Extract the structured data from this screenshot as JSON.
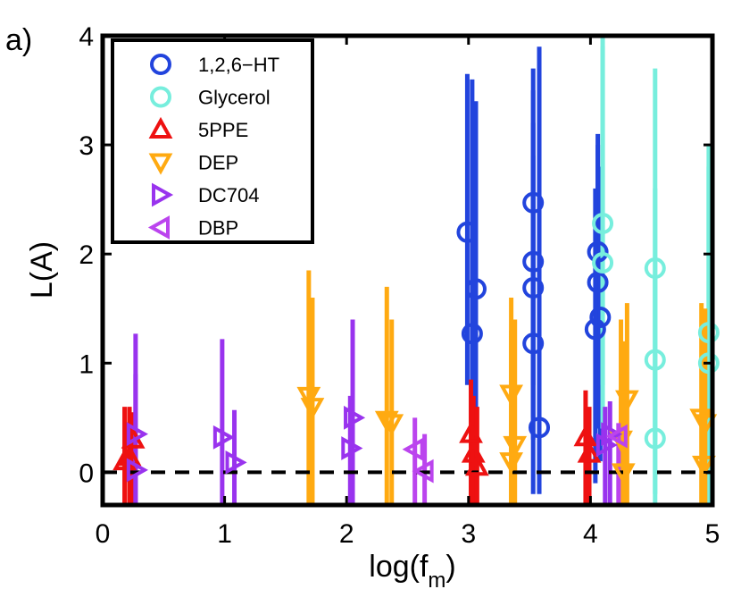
{
  "chart_data": {
    "type": "scatter",
    "panel_label": "a)",
    "title": "",
    "xlabel": "log(f",
    "xlabel_sub": "m",
    "xlabel_close": ")",
    "ylabel": "L(A)",
    "xlim": [
      0,
      5
    ],
    "ylim": [
      -0.3,
      4.0
    ],
    "xticks": [
      0,
      1,
      2,
      3,
      4,
      5
    ],
    "yticks": [
      0,
      1,
      2,
      3,
      4
    ],
    "xtick_labels": [
      "0",
      "1",
      "2",
      "3",
      "4",
      "5"
    ],
    "ytick_labels": [
      "0",
      "1",
      "2",
      "3",
      "4"
    ],
    "reference_line": {
      "y": 0,
      "style": "dashed",
      "color": "#000000"
    },
    "legend_position": "top-left",
    "series": [
      {
        "name": "1,2,6−HT",
        "marker": "circle",
        "color": "#2244dd",
        "points": [
          {
            "x": 2.99,
            "y": 2.2,
            "lo": 0.8,
            "hi": 3.65
          },
          {
            "x": 3.03,
            "y": 1.27,
            "lo": -0.1,
            "hi": 3.6
          },
          {
            "x": 3.06,
            "y": 1.68,
            "lo": 0.2,
            "hi": 3.4
          },
          {
            "x": 3.53,
            "y": 2.47,
            "lo": 0.8,
            "hi": 3.7
          },
          {
            "x": 3.53,
            "y": 1.93,
            "lo": 0.5,
            "hi": 3.5
          },
          {
            "x": 3.53,
            "y": 1.69,
            "lo": 0.3,
            "hi": 3.2
          },
          {
            "x": 3.53,
            "y": 1.18,
            "lo": -0.2,
            "hi": 2.9
          },
          {
            "x": 3.58,
            "y": 0.41,
            "lo": -0.2,
            "hi": 3.9
          },
          {
            "x": 4.06,
            "y": 2.02,
            "lo": 0.7,
            "hi": 3.1
          },
          {
            "x": 4.06,
            "y": 1.74,
            "lo": 0.4,
            "hi": 3.0
          },
          {
            "x": 4.08,
            "y": 1.42,
            "lo": 0.1,
            "hi": 2.8
          },
          {
            "x": 4.04,
            "y": 1.31,
            "lo": -0.1,
            "hi": 2.6
          }
        ]
      },
      {
        "name": "Glycerol",
        "marker": "circle",
        "color": "#77eedd",
        "points": [
          {
            "x": 4.1,
            "y": 2.28,
            "lo": 0.8,
            "hi": 4.0
          },
          {
            "x": 4.1,
            "y": 1.92,
            "lo": 0.4,
            "hi": 3.9
          },
          {
            "x": 4.53,
            "y": 1.87,
            "lo": 0.3,
            "hi": 3.7
          },
          {
            "x": 4.53,
            "y": 1.03,
            "lo": -0.2,
            "hi": 2.6
          },
          {
            "x": 4.53,
            "y": 0.31,
            "lo": -0.3,
            "hi": 1.8
          },
          {
            "x": 4.97,
            "y": 1.28,
            "lo": -0.2,
            "hi": 3.0
          },
          {
            "x": 4.97,
            "y": 1.0,
            "lo": -0.3,
            "hi": 2.8
          }
        ]
      },
      {
        "name": "5PPE",
        "marker": "triangle-up",
        "color": "#ee1111",
        "points": [
          {
            "x": 0.18,
            "y": 0.1,
            "lo": -0.3,
            "hi": 0.6
          },
          {
            "x": 0.22,
            "y": 0.14,
            "lo": -0.3,
            "hi": 0.6
          },
          {
            "x": 0.25,
            "y": 0.3,
            "lo": -0.3,
            "hi": 0.55
          },
          {
            "x": 3.02,
            "y": 0.35,
            "lo": -0.3,
            "hi": 0.85
          },
          {
            "x": 3.04,
            "y": 0.17,
            "lo": -0.3,
            "hi": 0.7
          },
          {
            "x": 3.07,
            "y": 0.05,
            "lo": -0.3,
            "hi": 0.6
          },
          {
            "x": 3.96,
            "y": 0.32,
            "lo": -0.3,
            "hi": 0.75
          },
          {
            "x": 3.99,
            "y": 0.17,
            "lo": -0.3,
            "hi": 0.6
          }
        ]
      },
      {
        "name": "DEP",
        "marker": "triangle-down",
        "color": "#ffaa11",
        "points": [
          {
            "x": 1.69,
            "y": 0.7,
            "lo": -0.3,
            "hi": 1.85
          },
          {
            "x": 1.72,
            "y": 0.6,
            "lo": -0.3,
            "hi": 1.6
          },
          {
            "x": 2.33,
            "y": 0.48,
            "lo": -0.3,
            "hi": 1.7
          },
          {
            "x": 2.37,
            "y": 0.45,
            "lo": -0.3,
            "hi": 1.4
          },
          {
            "x": 3.35,
            "y": 0.72,
            "lo": -0.3,
            "hi": 1.6
          },
          {
            "x": 3.38,
            "y": 0.25,
            "lo": -0.3,
            "hi": 1.4
          },
          {
            "x": 3.35,
            "y": 0.1,
            "lo": -0.3,
            "hi": 1.3
          },
          {
            "x": 4.3,
            "y": 0.67,
            "lo": -0.3,
            "hi": 1.55
          },
          {
            "x": 4.25,
            "y": 0.3,
            "lo": -0.3,
            "hi": 1.4
          },
          {
            "x": 4.27,
            "y": 0.0,
            "lo": -0.3,
            "hi": 1.2
          },
          {
            "x": 4.91,
            "y": 0.5,
            "lo": -0.3,
            "hi": 1.55
          },
          {
            "x": 4.94,
            "y": 0.45,
            "lo": -0.3,
            "hi": 1.5
          },
          {
            "x": 4.93,
            "y": 0.07,
            "lo": -0.3,
            "hi": 1.2
          }
        ]
      },
      {
        "name": "DC704",
        "marker": "triangle-right",
        "color": "#9933ee",
        "points": [
          {
            "x": 0.27,
            "y": 0.35,
            "lo": -0.3,
            "hi": 1.27
          },
          {
            "x": 0.27,
            "y": 0.02,
            "lo": -0.3,
            "hi": 0.9
          },
          {
            "x": 0.98,
            "y": 0.32,
            "lo": -0.3,
            "hi": 1.22
          },
          {
            "x": 1.08,
            "y": 0.09,
            "lo": -0.3,
            "hi": 0.57
          },
          {
            "x": 2.05,
            "y": 0.5,
            "lo": -0.3,
            "hi": 1.4
          },
          {
            "x": 2.03,
            "y": 0.22,
            "lo": -0.3,
            "hi": 0.7
          },
          {
            "x": 4.16,
            "y": 0.35,
            "lo": -0.3,
            "hi": 0.65
          },
          {
            "x": 4.12,
            "y": 0.25,
            "lo": -0.3,
            "hi": 0.6
          }
        ]
      },
      {
        "name": "DBP",
        "marker": "triangle-left",
        "color": "#bb44ee",
        "points": [
          {
            "x": 2.56,
            "y": 0.21,
            "lo": -0.3,
            "hi": 0.5
          },
          {
            "x": 2.64,
            "y": 0.01,
            "lo": -0.3,
            "hi": 0.35
          },
          {
            "x": 4.23,
            "y": 0.33,
            "lo": -0.3,
            "hi": 0.45
          }
        ]
      }
    ]
  }
}
